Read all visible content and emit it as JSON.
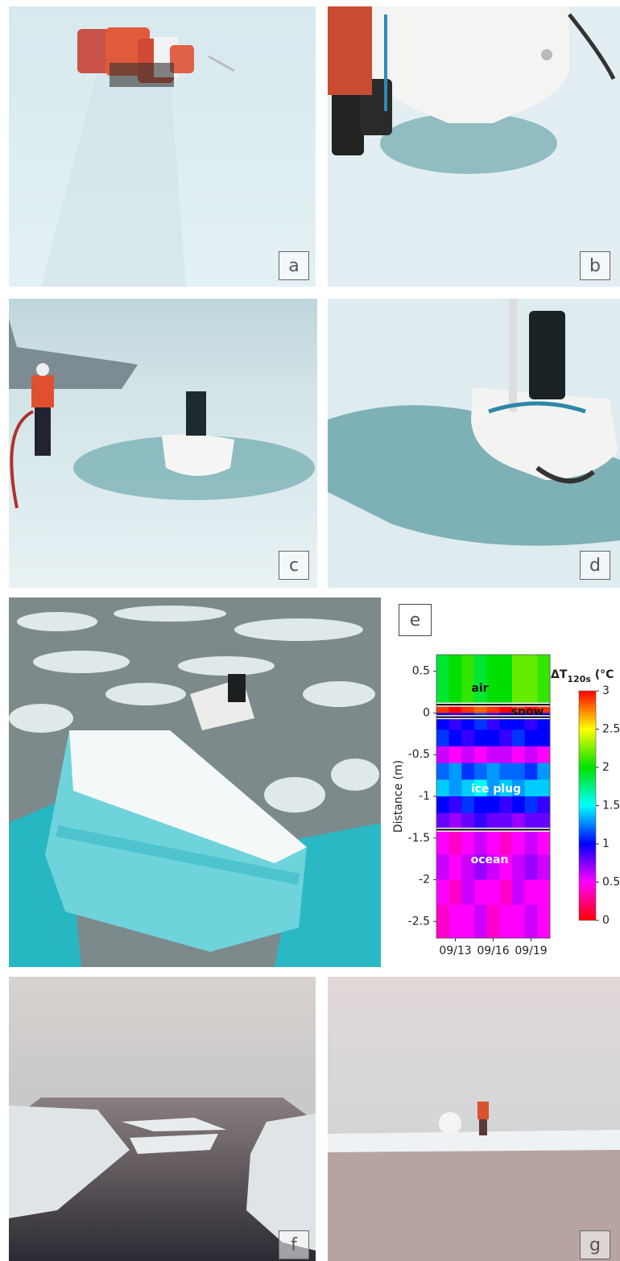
{
  "panels": [
    {
      "label": "a"
    },
    {
      "label": "b"
    },
    {
      "label": "c"
    },
    {
      "label": "d"
    },
    {
      "label": "e"
    },
    {
      "label": "f"
    },
    {
      "label": "g"
    }
  ],
  "chart_data": {
    "type": "heatmap",
    "y_label": "Distance (m)",
    "categories": [
      null,
      "09/13",
      null,
      null,
      "09/16",
      null,
      null,
      "09/19",
      null
    ],
    "row_edges": [
      0.7,
      0.1,
      0,
      -0.2,
      -0.4,
      -0.6,
      -0.8,
      -1.0,
      -1.2,
      -1.4,
      -1.7,
      -2.0,
      -2.3,
      -2.7
    ],
    "values": [
      [
        1.9,
        2.0,
        2.1,
        1.9,
        2.0,
        2.0,
        2.2,
        2.2,
        2.1
      ],
      [
        2.9,
        3.0,
        2.9,
        2.8,
        2.9,
        3.0,
        2.9,
        3.0,
        2.9
      ],
      [
        1.0,
        0.9,
        1.0,
        1.1,
        0.9,
        1.0,
        1.0,
        0.9,
        1.0
      ],
      [
        1.1,
        1.0,
        0.9,
        1.0,
        1.0,
        0.9,
        1.1,
        1.0,
        1.0
      ],
      [
        0.6,
        0.5,
        0.6,
        0.5,
        0.6,
        0.6,
        0.5,
        0.6,
        0.5
      ],
      [
        1.2,
        1.3,
        1.1,
        1.2,
        1.3,
        1.2,
        1.2,
        1.1,
        1.3
      ],
      [
        1.4,
        1.3,
        1.4,
        1.5,
        1.3,
        1.4,
        1.3,
        1.4,
        1.4
      ],
      [
        1.0,
        0.9,
        1.1,
        1.0,
        1.0,
        0.9,
        1.0,
        1.1,
        0.9
      ],
      [
        0.8,
        0.7,
        0.8,
        0.9,
        0.8,
        0.8,
        0.7,
        0.8,
        0.8
      ],
      [
        0.5,
        0.4,
        0.5,
        0.6,
        0.5,
        0.4,
        0.5,
        0.6,
        0.5
      ],
      [
        0.6,
        0.5,
        0.6,
        0.7,
        0.6,
        0.5,
        0.6,
        0.7,
        0.6
      ],
      [
        0.5,
        0.4,
        0.6,
        0.5,
        0.5,
        0.4,
        0.6,
        0.5,
        0.5
      ],
      [
        0.4,
        0.5,
        0.5,
        0.6,
        0.4,
        0.5,
        0.5,
        0.6,
        0.5
      ]
    ],
    "ylim": [
      -2.7,
      0.7
    ],
    "yticks": [
      0.5,
      0,
      -0.5,
      -1,
      -1.5,
      -2,
      -2.5
    ],
    "interfaces": [
      0.1,
      -0.05,
      -1.4
    ],
    "annotations": [
      "air",
      "snow",
      "ice plug",
      "ocean"
    ],
    "colormap": [
      "#ff0000",
      "#ff00ff",
      "#0000ff",
      "#00ffff",
      "#00e000",
      "#ffff00",
      "#ff0000"
    ],
    "clim": [
      0,
      3
    ],
    "colorbar_ticks": [
      0,
      0.5,
      1,
      1.5,
      2,
      2.5,
      3
    ],
    "colorbar_label": {
      "main": "ΔT",
      "sub": "120s",
      "unit": " (°C"
    }
  }
}
